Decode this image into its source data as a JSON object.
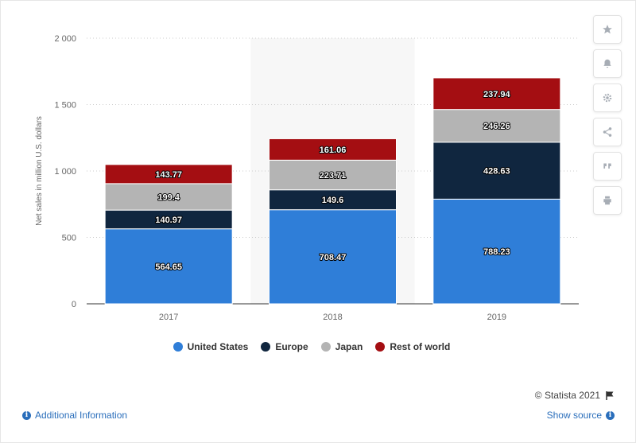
{
  "chart_data": {
    "type": "bar",
    "stacked": true,
    "categories": [
      "2017",
      "2018",
      "2019"
    ],
    "series": [
      {
        "name": "United States",
        "color": "#2f7ed8",
        "values": [
          564.65,
          708.47,
          788.23
        ]
      },
      {
        "name": "Europe",
        "color": "#10263f",
        "values": [
          140.97,
          149.6,
          428.63
        ]
      },
      {
        "name": "Japan",
        "color": "#b4b4b4",
        "values": [
          199.4,
          223.71,
          246.26
        ]
      },
      {
        "name": "Rest of world",
        "color": "#a40e12",
        "values": [
          143.77,
          161.06,
          237.94
        ]
      }
    ],
    "ylabel": "Net sales in million U.S. dollars",
    "ylim": [
      0,
      2000
    ],
    "yticks": [
      0,
      500,
      1000,
      1500,
      2000
    ],
    "ytick_labels": [
      "0",
      "500",
      "1 000",
      "1 500",
      "2 000"
    ],
    "grid": true,
    "highlighted_category": "2018",
    "legend_position": "bottom"
  },
  "credit": "© Statista 2021",
  "footer": {
    "info_label": "Additional Information",
    "source_label": "Show source"
  },
  "toolbar": [
    "star-icon",
    "bell-icon",
    "gear-icon",
    "share-icon",
    "quote-icon",
    "print-icon"
  ]
}
